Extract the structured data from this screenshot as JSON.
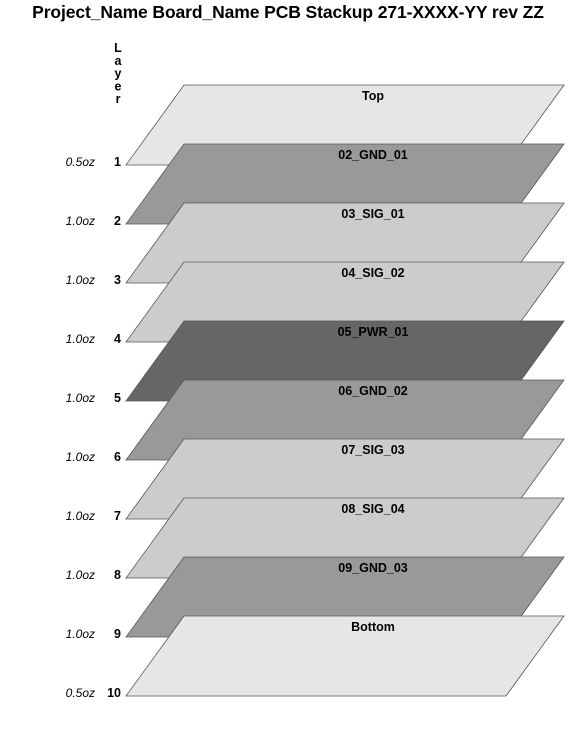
{
  "title": "Project_Name Board_Name PCB Stackup 271-XXXX-YY rev ZZ",
  "axis_label": "Layer",
  "layers": [
    {
      "name": "Top",
      "number": "1",
      "weight": "0.5oz",
      "color": "#e6e6e6"
    },
    {
      "name": "02_GND_01",
      "number": "2",
      "weight": "1.0oz",
      "color": "#999999"
    },
    {
      "name": "03_SIG_01",
      "number": "3",
      "weight": "1.0oz",
      "color": "#cccccc"
    },
    {
      "name": "04_SIG_02",
      "number": "4",
      "weight": "1.0oz",
      "color": "#cccccc"
    },
    {
      "name": "05_PWR_01",
      "number": "5",
      "weight": "1.0oz",
      "color": "#666666"
    },
    {
      "name": "06_GND_02",
      "number": "6",
      "weight": "1.0oz",
      "color": "#999999"
    },
    {
      "name": "07_SIG_03",
      "number": "7",
      "weight": "1.0oz",
      "color": "#cccccc"
    },
    {
      "name": "08_SIG_04",
      "number": "8",
      "weight": "1.0oz",
      "color": "#cccccc"
    },
    {
      "name": "09_GND_03",
      "number": "9",
      "weight": "1.0oz",
      "color": "#999999"
    },
    {
      "name": "Bottom",
      "number": "10",
      "weight": "0.5oz",
      "color": "#e6e6e6"
    }
  ]
}
